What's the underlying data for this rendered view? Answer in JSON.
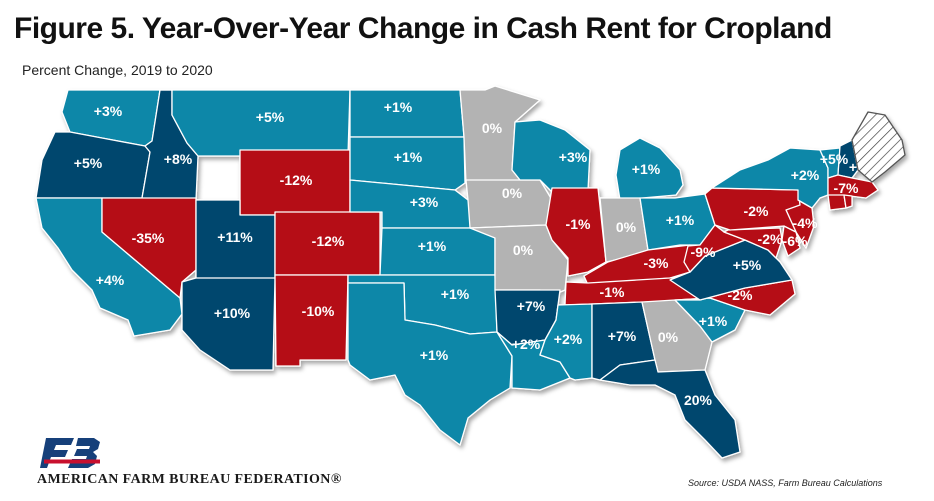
{
  "title": "Figure 5. Year-Over-Year Change in Cash Rent for Cropland",
  "subtitle": "Percent Change, 2019 to 2020",
  "organization": "AMERICAN FARM BUREAU FEDERATION®",
  "source": "Source: USDA NASS, Farm Bureau Calculations",
  "colors": {
    "gain_small": "#1187a8",
    "gain_large": "#06476e",
    "no_change": "#b3b3b3",
    "decline": "#b50d13",
    "no_data": "#ffffff",
    "logo_blue": "#16407a",
    "logo_red": "#c8102e"
  },
  "states": [
    {
      "id": "WA",
      "label": "+3%",
      "color": "gain_small"
    },
    {
      "id": "OR",
      "label": "+5%",
      "color": "gain_large"
    },
    {
      "id": "CA",
      "label": "+4%",
      "color": "gain_small"
    },
    {
      "id": "ID",
      "label": "+8%",
      "color": "gain_large"
    },
    {
      "id": "NV",
      "label": "-35%",
      "color": "decline"
    },
    {
      "id": "MT",
      "label": "+5%",
      "color": "gain_small"
    },
    {
      "id": "WY",
      "label": "-12%",
      "color": "decline"
    },
    {
      "id": "UT",
      "label": "+11%",
      "color": "gain_large"
    },
    {
      "id": "CO",
      "label": "-12%",
      "color": "decline"
    },
    {
      "id": "AZ",
      "label": "+10%",
      "color": "gain_large"
    },
    {
      "id": "NM",
      "label": "-10%",
      "color": "decline"
    },
    {
      "id": "ND",
      "label": "+1%",
      "color": "gain_small"
    },
    {
      "id": "SD",
      "label": "+1%",
      "color": "gain_small"
    },
    {
      "id": "NE",
      "label": "+3%",
      "color": "gain_small"
    },
    {
      "id": "KS",
      "label": "+1%",
      "color": "gain_small"
    },
    {
      "id": "OK",
      "label": "+1%",
      "color": "gain_small"
    },
    {
      "id": "TX",
      "label": "+1%",
      "color": "gain_small"
    },
    {
      "id": "MN",
      "label": "0%",
      "color": "no_change"
    },
    {
      "id": "IA",
      "label": "0%",
      "color": "no_change"
    },
    {
      "id": "MO",
      "label": "0%",
      "color": "no_change"
    },
    {
      "id": "AR",
      "label": "+7%",
      "color": "gain_large"
    },
    {
      "id": "LA",
      "label": "+2%",
      "color": "gain_small"
    },
    {
      "id": "WI",
      "label": "+3%",
      "color": "gain_small"
    },
    {
      "id": "IL",
      "label": "-1%",
      "color": "decline"
    },
    {
      "id": "MI",
      "label": "+1%",
      "color": "gain_small"
    },
    {
      "id": "IN",
      "label": "0%",
      "color": "no_change"
    },
    {
      "id": "OH",
      "label": "+1%",
      "color": "gain_small"
    },
    {
      "id": "KY",
      "label": "-3%",
      "color": "decline"
    },
    {
      "id": "TN",
      "label": "-1%",
      "color": "decline"
    },
    {
      "id": "MS",
      "label": "+2%",
      "color": "gain_small"
    },
    {
      "id": "AL",
      "label": "+7%",
      "color": "gain_large"
    },
    {
      "id": "GA",
      "label": "0%",
      "color": "no_change"
    },
    {
      "id": "FL",
      "label": "20%",
      "color": "gain_large"
    },
    {
      "id": "SC",
      "label": "+1%",
      "color": "gain_small"
    },
    {
      "id": "NC",
      "label": "-2%",
      "color": "decline"
    },
    {
      "id": "VA",
      "label": "+5%",
      "color": "gain_large"
    },
    {
      "id": "WV",
      "label": "-9%",
      "color": "decline"
    },
    {
      "id": "MD",
      "label": "-2%",
      "color": "decline"
    },
    {
      "id": "DE",
      "label": "-6%",
      "color": "decline"
    },
    {
      "id": "NJ",
      "label": "-4%",
      "color": "decline"
    },
    {
      "id": "PA",
      "label": "-2%",
      "color": "decline"
    },
    {
      "id": "NY",
      "label": "+2%",
      "color": "gain_small"
    },
    {
      "id": "VT",
      "label": "+5%",
      "color": "gain_small"
    },
    {
      "id": "NH",
      "label": "+",
      "color": "gain_large"
    },
    {
      "id": "MA",
      "label": "-7%",
      "color": "decline"
    },
    {
      "id": "CT",
      "label": "",
      "color": "decline"
    },
    {
      "id": "RI",
      "label": "",
      "color": "decline"
    },
    {
      "id": "ME",
      "label": "",
      "color": "no_data"
    }
  ]
}
